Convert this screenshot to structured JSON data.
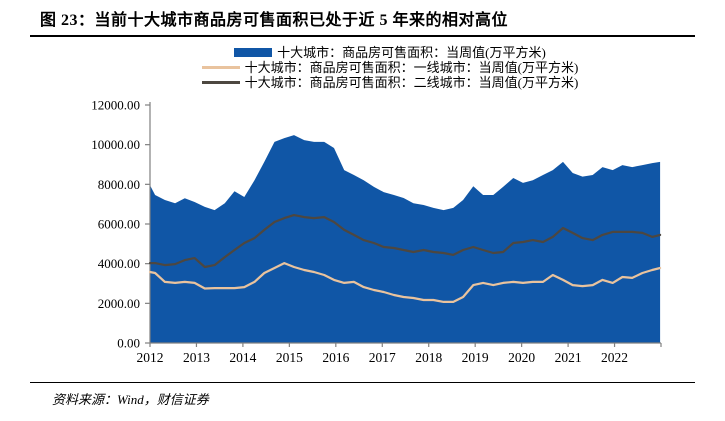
{
  "title": "图 23：当前十大城市商品房可售面积已处于近 5 年来的相对高位",
  "source": "资料来源：Wind，财信证券",
  "colors": {
    "area_blue": "#1056A6",
    "tier1_tan": "#E9C39E",
    "tier2_gray": "#4D4740",
    "axis_gray": "#808080",
    "rule_black": "#000000"
  },
  "chart_data": {
    "type": "area",
    "title": "当前十大城市商品房可售面积已处于近 5 年来的相对高位",
    "xlabel": "",
    "ylabel": "万平方米",
    "grid": false,
    "legend_position": "top-center",
    "xlim": [
      2012,
      2023
    ],
    "ylim": [
      0,
      12000
    ],
    "y_ticks": [
      "0.00",
      "2000.00",
      "4000.00",
      "6000.00",
      "8000.00",
      "10000.00",
      "12000.00"
    ],
    "x_ticks": [
      "2012",
      "2013",
      "2014",
      "2015",
      "2016",
      "2017",
      "2018",
      "2019",
      "2020",
      "2021",
      "2022"
    ],
    "x": [
      2012.0,
      2012.11,
      2012.32,
      2012.54,
      2012.75,
      2012.96,
      2013.18,
      2013.39,
      2013.61,
      2013.82,
      2014.03,
      2014.25,
      2014.46,
      2014.68,
      2014.89,
      2015.1,
      2015.32,
      2015.53,
      2015.75,
      2015.96,
      2016.18,
      2016.39,
      2016.6,
      2016.82,
      2017.03,
      2017.25,
      2017.46,
      2017.67,
      2017.89,
      2018.1,
      2018.32,
      2018.53,
      2018.74,
      2018.96,
      2019.17,
      2019.39,
      2019.6,
      2019.82,
      2020.03,
      2020.24,
      2020.46,
      2020.67,
      2020.89,
      2021.1,
      2021.31,
      2021.53,
      2021.74,
      2021.96,
      2022.17,
      2022.38,
      2022.6,
      2022.81,
      2022.98
    ],
    "series": [
      {
        "name": "十大城市：商品房可售面积：当周值(万平方米)",
        "kind": "area",
        "color": "#1056A6",
        "values": [
          7950,
          7460,
          7210,
          7050,
          7300,
          7110,
          6860,
          6700,
          7050,
          7650,
          7360,
          8210,
          9130,
          10140,
          10330,
          10480,
          10230,
          10140,
          10140,
          9830,
          8720,
          8470,
          8210,
          7870,
          7610,
          7460,
          7310,
          7050,
          6960,
          6810,
          6700,
          6810,
          7210,
          7900,
          7460,
          7460,
          7870,
          8320,
          8070,
          8210,
          8470,
          8720,
          9130,
          8570,
          8390,
          8470,
          8870,
          8720,
          8970,
          8870,
          8970,
          9070,
          9130
        ]
      },
      {
        "name": "十大城市：商品房可售面积：一线城市：当周值(万平方米)",
        "kind": "line",
        "color": "#E9C39E",
        "values": [
          3580,
          3530,
          3080,
          3030,
          3080,
          3030,
          2750,
          2770,
          2770,
          2770,
          2820,
          3080,
          3530,
          3780,
          4030,
          3830,
          3680,
          3580,
          3430,
          3180,
          3030,
          3080,
          2820,
          2670,
          2570,
          2420,
          2320,
          2270,
          2170,
          2170,
          2070,
          2070,
          2320,
          2920,
          3030,
          2920,
          3030,
          3080,
          3030,
          3080,
          3080,
          3430,
          3180,
          2920,
          2870,
          2920,
          3180,
          3030,
          3330,
          3280,
          3530,
          3680,
          3780
        ]
      },
      {
        "name": "十大城市：商品房可售面积：二线城市：当周值(万平方米)",
        "kind": "line",
        "color": "#4D4740",
        "values": [
          4030,
          4030,
          3930,
          3980,
          4180,
          4280,
          3830,
          3930,
          4330,
          4690,
          5040,
          5290,
          5700,
          6100,
          6300,
          6450,
          6350,
          6300,
          6350,
          6100,
          5700,
          5450,
          5190,
          5040,
          4840,
          4790,
          4690,
          4590,
          4690,
          4590,
          4540,
          4440,
          4690,
          4840,
          4690,
          4540,
          4590,
          5040,
          5090,
          5190,
          5090,
          5350,
          5800,
          5550,
          5290,
          5190,
          5450,
          5600,
          5600,
          5600,
          5550,
          5350,
          5450
        ]
      }
    ]
  }
}
